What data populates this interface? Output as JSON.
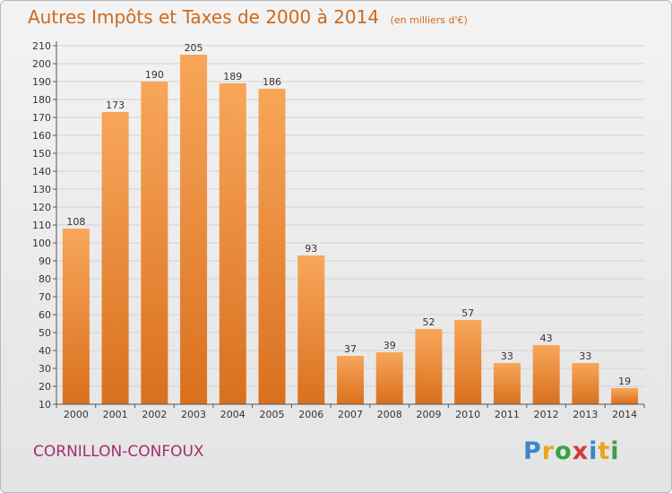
{
  "chart_data": {
    "type": "bar",
    "title": "Autres Impôts et Taxes de 2000 à 2014",
    "subtitle": "(en milliers d'€)",
    "categories": [
      "2000",
      "2001",
      "2002",
      "2003",
      "2004",
      "2005",
      "2006",
      "2007",
      "2008",
      "2009",
      "2010",
      "2011",
      "2012",
      "2013",
      "2014"
    ],
    "values": [
      108,
      173,
      190,
      205,
      189,
      186,
      93,
      37,
      39,
      52,
      57,
      33,
      43,
      33,
      19
    ],
    "ylim": [
      10,
      210
    ],
    "yticks": [
      10,
      20,
      30,
      40,
      50,
      60,
      70,
      80,
      90,
      100,
      110,
      120,
      130,
      140,
      150,
      160,
      170,
      180,
      190,
      200,
      210
    ],
    "grid": true,
    "bar_color": "#f29a45"
  },
  "commune": "CORNILLON-CONFOUX",
  "brand": "Proxiti"
}
